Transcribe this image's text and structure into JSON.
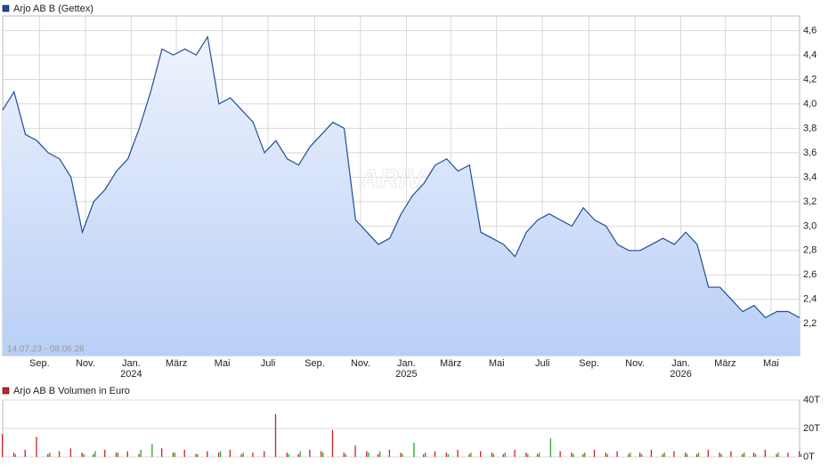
{
  "chart_data": [
    {
      "type": "area",
      "legend": "Arjo AB B (Gettex)",
      "color": "#1f4e9c",
      "range_label": "14.07.23 - 08.06.26",
      "watermark": "ARIVA",
      "xlim": [
        "2023-07-14",
        "2026-06-08"
      ],
      "xticks": [
        {
          "value": "2023-09",
          "label": "Sep."
        },
        {
          "value": "2023-11",
          "label": "Nov."
        },
        {
          "value": "2024-01",
          "label": "Jan."
        },
        {
          "value": "2024-03",
          "label": "März"
        },
        {
          "value": "2024-05",
          "label": "Mai"
        },
        {
          "value": "2024-07",
          "label": "Juli"
        },
        {
          "value": "2024-09",
          "label": "Sep."
        },
        {
          "value": "2024-11",
          "label": "Nov."
        },
        {
          "value": "2025-01",
          "label": "Jan."
        },
        {
          "value": "2025-03",
          "label": "März"
        },
        {
          "value": "2025-05",
          "label": "Mai"
        },
        {
          "value": "2025-07",
          "label": "Juli"
        },
        {
          "value": "2025-09",
          "label": "Sep."
        },
        {
          "value": "2025-11",
          "label": "Nov."
        },
        {
          "value": "2026-01",
          "label": "Jan."
        },
        {
          "value": "2026-03",
          "label": "März"
        },
        {
          "value": "2026-05",
          "label": "Mai"
        }
      ],
      "year_labels": [
        {
          "value": "2024-01",
          "label": "2024"
        },
        {
          "value": "2025-01",
          "label": "2025"
        },
        {
          "value": "2026-01",
          "label": "2026"
        }
      ],
      "ylim": [
        1.94,
        4.72
      ],
      "yticks": [
        {
          "value": 2.2,
          "label": "2,2"
        },
        {
          "value": 2.4,
          "label": "2,4"
        },
        {
          "value": 2.6,
          "label": "2,6"
        },
        {
          "value": 2.8,
          "label": "2,8"
        },
        {
          "value": 3.0,
          "label": "3,0"
        },
        {
          "value": 3.2,
          "label": "3,2"
        },
        {
          "value": 3.4,
          "label": "3,4"
        },
        {
          "value": 3.6,
          "label": "3,6"
        },
        {
          "value": 3.8,
          "label": "3,8"
        },
        {
          "value": 4.0,
          "label": "4,0"
        },
        {
          "value": 4.2,
          "label": "4,2"
        },
        {
          "value": 4.4,
          "label": "4,4"
        },
        {
          "value": 4.6,
          "label": "4,6"
        }
      ],
      "grid": true,
      "values": [
        3.95,
        4.1,
        3.75,
        3.7,
        3.6,
        3.55,
        3.4,
        2.95,
        3.2,
        3.3,
        3.45,
        3.55,
        3.8,
        4.1,
        4.45,
        4.4,
        4.45,
        4.4,
        4.55,
        4.0,
        4.05,
        3.95,
        3.85,
        3.6,
        3.7,
        3.55,
        3.5,
        3.65,
        3.75,
        3.85,
        3.8,
        3.05,
        2.95,
        2.85,
        2.9,
        3.1,
        3.25,
        3.35,
        3.5,
        3.55,
        3.45,
        3.5,
        2.95,
        2.9,
        2.85,
        2.75,
        2.95,
        3.05,
        3.1,
        3.05,
        3.0,
        3.15,
        3.05,
        3.0,
        2.85,
        2.8,
        2.8,
        2.85,
        2.9,
        2.85,
        2.95,
        2.85,
        2.5,
        2.5,
        2.4,
        2.3,
        2.35,
        2.25,
        2.3,
        2.3,
        2.25
      ]
    },
    {
      "type": "bar",
      "legend": "Arjo AB B Volumen in Euro",
      "xlim": [
        "2023-07-14",
        "2026-06-08"
      ],
      "ylim": [
        0,
        40000
      ],
      "yticks": [
        {
          "value": 0,
          "label": "0T"
        },
        {
          "value": 20000,
          "label": "20T"
        },
        {
          "value": 40000,
          "label": "40T"
        }
      ],
      "grid": true,
      "series": [
        {
          "color": "#cc2222",
          "values": [
            16000,
            3000,
            5000,
            14000,
            2000,
            4000,
            6000,
            3000,
            2000,
            5000,
            3000,
            4000,
            2000,
            null,
            6000,
            3000,
            5000,
            2000,
            4000,
            3000,
            5000,
            2000,
            3000,
            4000,
            30000,
            3000,
            2000,
            5000,
            4000,
            19000,
            3000,
            8000,
            4000,
            2000,
            5000,
            3000,
            null,
            2000,
            4000,
            3000,
            5000,
            2000,
            4000,
            3000,
            2000,
            5000,
            3000,
            2000,
            null,
            4000,
            3000,
            2000,
            5000,
            3000,
            4000,
            2000,
            3000,
            5000,
            2000,
            4000,
            3000,
            2000,
            5000,
            3000,
            4000,
            2000,
            3000,
            5000,
            2000,
            3000,
            4000
          ]
        },
        {
          "color": "#22aa22",
          "values": [
            null,
            2000,
            null,
            null,
            3000,
            null,
            null,
            2000,
            4000,
            null,
            3000,
            null,
            5000,
            9000,
            null,
            3000,
            null,
            2000,
            null,
            4000,
            null,
            3000,
            null,
            null,
            null,
            2000,
            4000,
            null,
            3000,
            null,
            2000,
            null,
            3000,
            4000,
            null,
            2000,
            10000,
            3000,
            null,
            2000,
            null,
            3000,
            null,
            2000,
            3000,
            null,
            2000,
            3000,
            13000,
            null,
            2000,
            3000,
            null,
            2000,
            null,
            3000,
            2000,
            null,
            3000,
            null,
            2000,
            3000,
            null,
            2000,
            null,
            3000,
            2000,
            null,
            3000,
            null,
            2000
          ]
        }
      ]
    }
  ]
}
